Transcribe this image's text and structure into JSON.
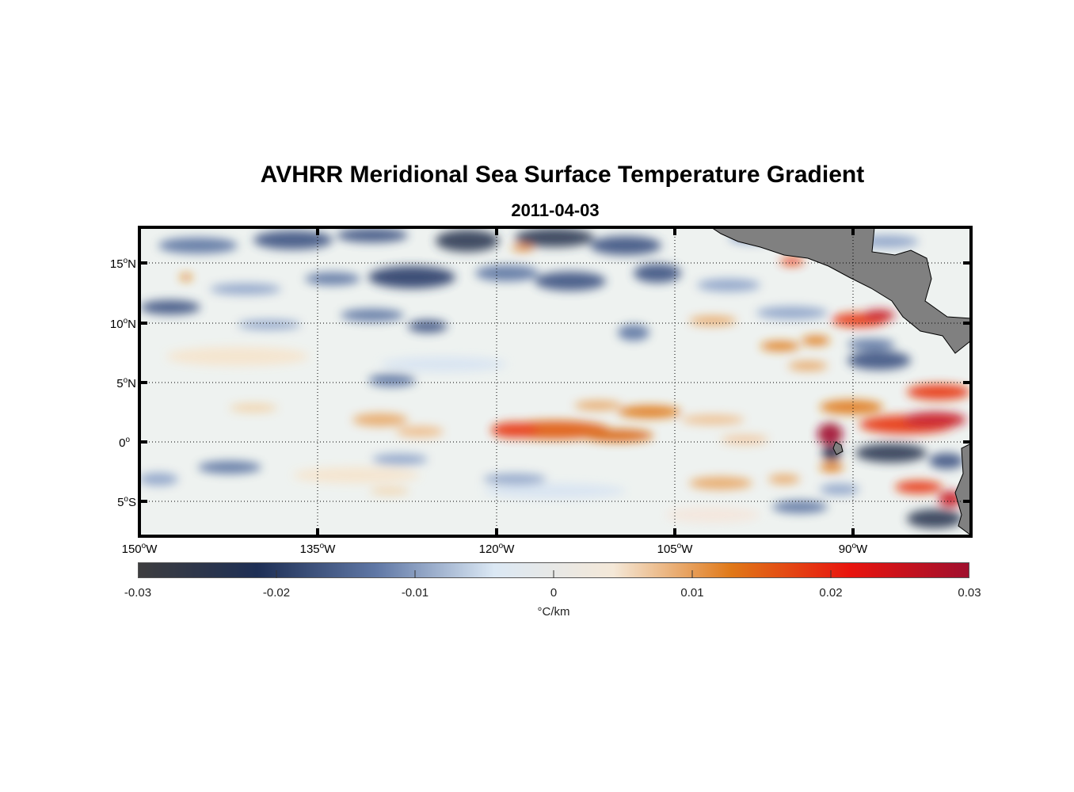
{
  "title": "AVHRR Meridional Sea Surface Temperature Gradient",
  "subtitle": "2011-04-03",
  "map": {
    "lat_ticks": [
      {
        "deg": "15",
        "hemi": "N"
      },
      {
        "deg": "10",
        "hemi": "N"
      },
      {
        "deg": "5",
        "hemi": "N"
      },
      {
        "deg": "0",
        "hemi": ""
      },
      {
        "deg": "5",
        "hemi": "S"
      }
    ],
    "lon_ticks": [
      {
        "deg": "150",
        "hemi": "W"
      },
      {
        "deg": "135",
        "hemi": "W"
      },
      {
        "deg": "120",
        "hemi": "W"
      },
      {
        "deg": "105",
        "hemi": "W"
      },
      {
        "deg": "90",
        "hemi": "W"
      }
    ],
    "lon_range": [
      -150,
      -80
    ],
    "lat_range": [
      -8,
      18
    ]
  },
  "colorbar": {
    "ticks": [
      "-0.03",
      "-0.02",
      "-0.01",
      "0",
      "0.01",
      "0.02",
      "0.03"
    ],
    "unit": "°C/km",
    "colors": [
      "#3d3d3f",
      "#1e2f55",
      "#5f77a5",
      "#dbe8f4",
      "#f4e8d8",
      "#e07818",
      "#e8140e",
      "#a0102e"
    ]
  },
  "land_color": "#808080"
}
